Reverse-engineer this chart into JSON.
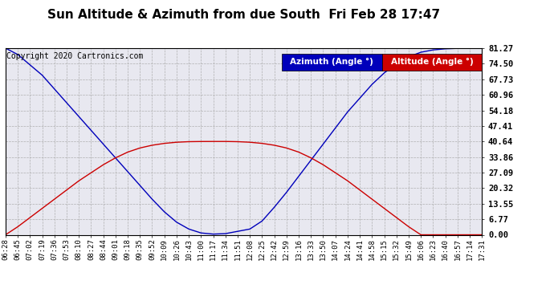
{
  "title": "Sun Altitude & Azimuth from due South  Fri Feb 28 17:47",
  "copyright": "Copyright 2020 Cartronics.com",
  "legend_azimuth": "Azimuth (Angle °)",
  "legend_altitude": "Altitude (Angle °)",
  "yticks": [
    0.0,
    6.77,
    13.55,
    20.32,
    27.09,
    33.86,
    40.64,
    47.41,
    54.18,
    60.96,
    67.73,
    74.5,
    81.27
  ],
  "xtick_labels": [
    "06:28",
    "06:45",
    "07:02",
    "07:19",
    "07:36",
    "07:53",
    "08:10",
    "08:27",
    "08:44",
    "09:01",
    "09:18",
    "09:35",
    "09:52",
    "10:09",
    "10:26",
    "10:43",
    "11:00",
    "11:17",
    "11:34",
    "11:51",
    "12:08",
    "12:25",
    "12:42",
    "12:59",
    "13:16",
    "13:33",
    "13:50",
    "14:07",
    "14:24",
    "14:41",
    "14:58",
    "15:15",
    "15:32",
    "15:49",
    "16:06",
    "16:23",
    "16:40",
    "16:57",
    "17:14",
    "17:31"
  ],
  "ymax": 81.27,
  "ymin": 0.0,
  "azimuth_color": "#0000bb",
  "altitude_color": "#cc0000",
  "bg_color": "#ffffff",
  "plot_bg_color": "#e8e8f0",
  "grid_color": "#aaaaaa",
  "title_fontsize": 11,
  "copyright_fontsize": 7,
  "legend_fontsize": 7.5,
  "tick_fontsize": 6.5,
  "ytick_fontsize": 7.5,
  "azimuth_data": [
    81.27,
    78.5,
    74.0,
    69.5,
    63.5,
    57.5,
    51.5,
    45.5,
    39.5,
    33.5,
    27.5,
    21.5,
    15.5,
    10.0,
    5.5,
    2.5,
    0.8,
    0.3,
    0.5,
    1.5,
    2.5,
    6.0,
    12.0,
    18.5,
    25.5,
    32.5,
    39.5,
    46.5,
    53.5,
    59.5,
    65.5,
    70.5,
    74.5,
    77.5,
    79.5,
    80.5,
    81.0,
    81.2,
    81.27,
    81.27
  ],
  "altitude_data": [
    0.0,
    3.5,
    7.5,
    11.5,
    15.5,
    19.5,
    23.5,
    27.0,
    30.5,
    33.5,
    36.0,
    37.8,
    39.0,
    39.8,
    40.3,
    40.55,
    40.62,
    40.64,
    40.64,
    40.55,
    40.3,
    39.8,
    39.0,
    37.8,
    36.0,
    33.5,
    30.5,
    27.0,
    23.5,
    19.5,
    15.5,
    11.5,
    7.5,
    3.5,
    0.0,
    0.0,
    0.0,
    0.0,
    0.0,
    0.0
  ]
}
